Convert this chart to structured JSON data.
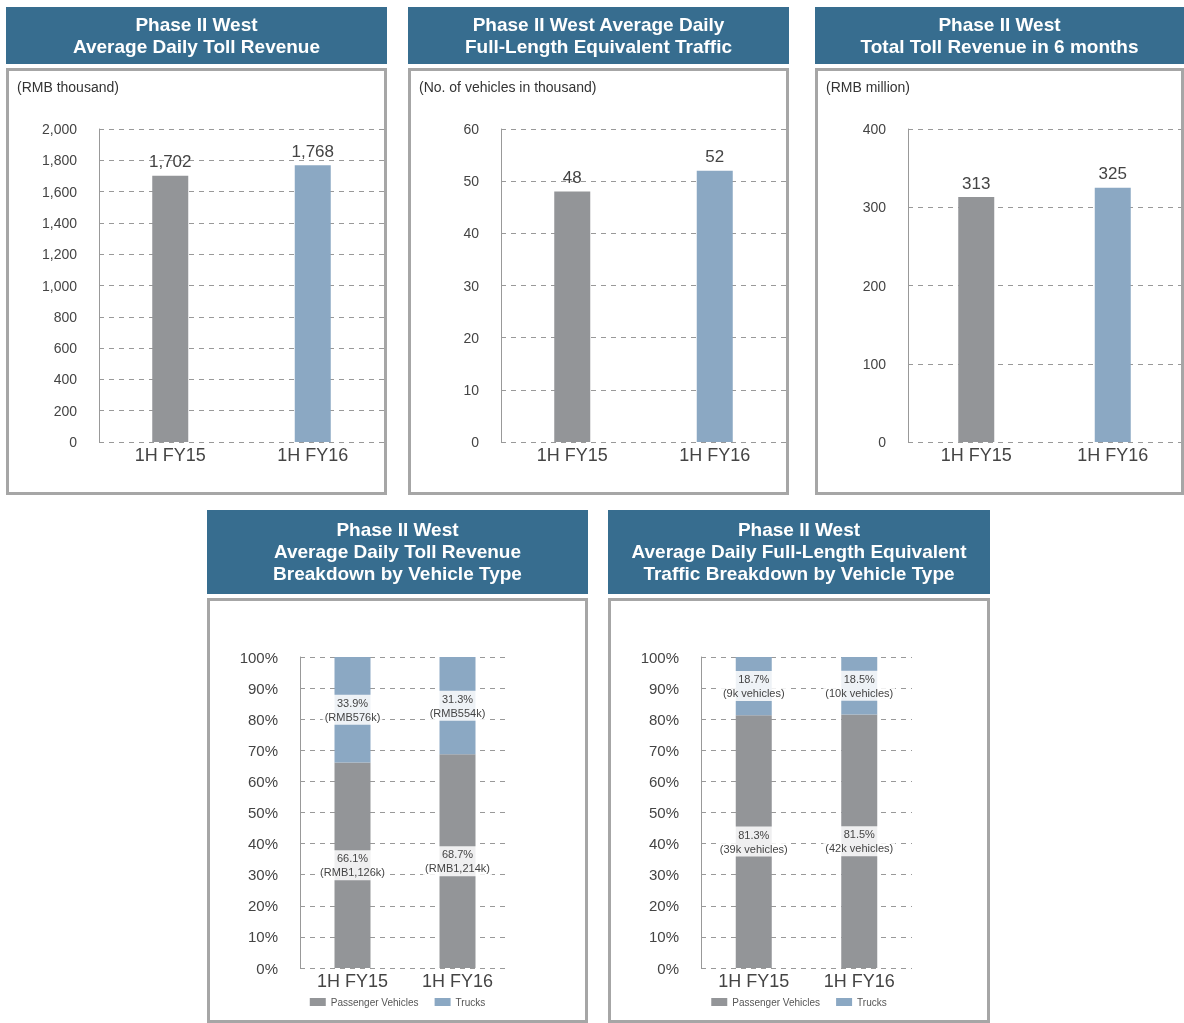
{
  "chart_data": [
    {
      "type": "bar",
      "title": "Phase II West\nAverage Daily Toll Revenue",
      "ylabel": "(RMB thousand)",
      "categories": [
        "1H FY15",
        "1H FY16"
      ],
      "values": [
        1702,
        1768
      ],
      "colors": [
        "#939598",
        "#8ba8c3"
      ],
      "value_labels": [
        "1,702",
        "1,768"
      ],
      "ylim": [
        0,
        2000
      ],
      "yticks": [
        0,
        200,
        400,
        600,
        800,
        {
          "value": 1000,
          "label": "1,000"
        },
        {
          "value": 1200,
          "label": "1,200"
        },
        {
          "value": 1400,
          "label": "1,400"
        },
        {
          "value": 1600,
          "label": "1,600"
        },
        {
          "value": 1800,
          "label": "1,800"
        },
        {
          "value": 2000,
          "label": "2,000"
        }
      ],
      "grid": "y"
    },
    {
      "type": "bar",
      "title": "Phase II West Average Daily\nFull-Length Equivalent Traffic",
      "ylabel": "(No. of vehicles in thousand)",
      "categories": [
        "1H FY15",
        "1H FY16"
      ],
      "values": [
        48,
        52
      ],
      "colors": [
        "#939598",
        "#8ba8c3"
      ],
      "data_labels": true,
      "ylim": [
        0,
        60
      ],
      "yticks": [
        0,
        10,
        20,
        30,
        40,
        50,
        60
      ],
      "grid": "y"
    },
    {
      "type": "bar",
      "title": "Phase II West\nTotal Toll Revenue in 6 months",
      "ylabel": "(RMB million)",
      "categories": [
        "1H FY15",
        "1H FY16"
      ],
      "values": [
        313,
        325
      ],
      "colors": [
        "#939598",
        "#8ba8c3"
      ],
      "data_labels": true,
      "ylim": [
        0,
        400
      ],
      "yticks": [
        0,
        100,
        200,
        300,
        400
      ],
      "grid": "y"
    },
    {
      "type": "bar",
      "title": "Phase II West\nAverage Daily Toll Revenue\nBreakdown by Vehicle Type",
      "categories": [
        "1H FY15",
        "1H FY16"
      ],
      "stacked": true,
      "legend": "bottom",
      "series": [
        {
          "name": "Passenger Vehicles",
          "color": "#939598",
          "values": [
            66.1,
            68.7
          ],
          "value_labels": [
            "66.1%\n(RMB1,126k)",
            "68.7%\n(RMB1,214k)"
          ]
        },
        {
          "name": "Trucks",
          "color": "#8ba8c3",
          "values": [
            33.9,
            31.3
          ],
          "value_labels": [
            "33.9%\n(RMB576k)",
            "31.3%\n(RMB554k)"
          ]
        }
      ],
      "ylim": [
        0,
        100
      ],
      "yticks": [
        {
          "value": 0,
          "label": "0%"
        },
        {
          "value": 10,
          "label": "10%"
        },
        {
          "value": 20,
          "label": "20%"
        },
        {
          "value": 30,
          "label": "30%"
        },
        {
          "value": 40,
          "label": "40%"
        },
        {
          "value": 50,
          "label": "50%"
        },
        {
          "value": 60,
          "label": "60%"
        },
        {
          "value": 70,
          "label": "70%"
        },
        {
          "value": 80,
          "label": "80%"
        },
        {
          "value": 90,
          "label": "90%"
        },
        {
          "value": 100,
          "label": "100%"
        }
      ],
      "grid": "y"
    },
    {
      "type": "bar",
      "title": "Phase II West\nAverage Daily Full-Length Equivalent\nTraffic Breakdown by Vehicle Type",
      "categories": [
        "1H FY15",
        "1H FY16"
      ],
      "stacked": true,
      "legend": "bottom",
      "series": [
        {
          "name": "Passenger Vehicles",
          "color": "#939598",
          "values": [
            81.3,
            81.5
          ],
          "value_labels": [
            "81.3%\n(39k vehicles)",
            "81.5%\n(42k vehicles)"
          ]
        },
        {
          "name": "Trucks",
          "color": "#8ba8c3",
          "values": [
            18.7,
            18.5
          ],
          "value_labels": [
            "18.7%\n(9k vehicles)",
            "18.5%\n(10k vehicles)"
          ]
        }
      ],
      "ylim": [
        0,
        100
      ],
      "yticks": [
        {
          "value": 0,
          "label": "0%"
        },
        {
          "value": 10,
          "label": "10%"
        },
        {
          "value": 20,
          "label": "20%"
        },
        {
          "value": 30,
          "label": "30%"
        },
        {
          "value": 40,
          "label": "40%"
        },
        {
          "value": 50,
          "label": "50%"
        },
        {
          "value": 60,
          "label": "60%"
        },
        {
          "value": 70,
          "label": "70%"
        },
        {
          "value": 80,
          "label": "80%"
        },
        {
          "value": 90,
          "label": "90%"
        },
        {
          "value": 100,
          "label": "100%"
        }
      ],
      "grid": "y"
    }
  ]
}
